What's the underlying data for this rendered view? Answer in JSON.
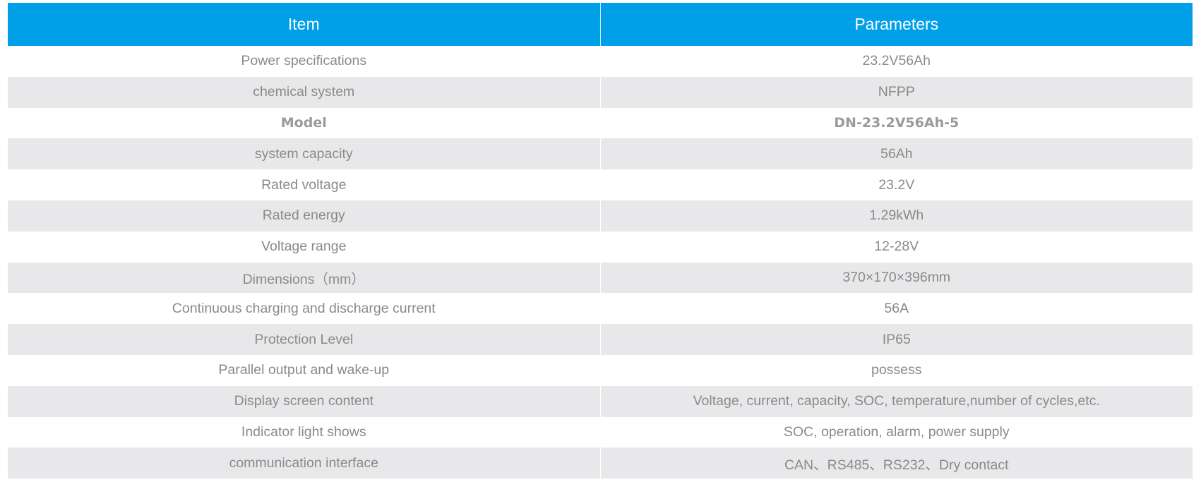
{
  "table": {
    "header": [
      "Item",
      "Parameters"
    ],
    "rows": [
      [
        "Power specifications",
        "23.2V56Ah"
      ],
      [
        "chemical system",
        "NFPP"
      ],
      [
        "Model",
        "DN-23.2V56Ah-5"
      ],
      [
        "system capacity",
        "56Ah"
      ],
      [
        "Rated voltage",
        "23.2V"
      ],
      [
        "Rated energy",
        "1.29kWh"
      ],
      [
        "Voltage range",
        "12-28V"
      ],
      [
        "Dimensions（mm）",
        "370×170×396mm"
      ],
      [
        "Continuous charging and discharge current",
        "56A"
      ],
      [
        "Protection Level",
        "IP65"
      ],
      [
        "Parallel output and wake-up",
        "possess"
      ],
      [
        "Display screen content",
        "Voltage, current, capacity, SOC, temperature,number of cycles,etc."
      ],
      [
        "Indicator light shows",
        "SOC, operation, alarm, power supply"
      ],
      [
        "communication interface",
        "CAN、RS485、RS232、Dry contact"
      ]
    ]
  }
}
